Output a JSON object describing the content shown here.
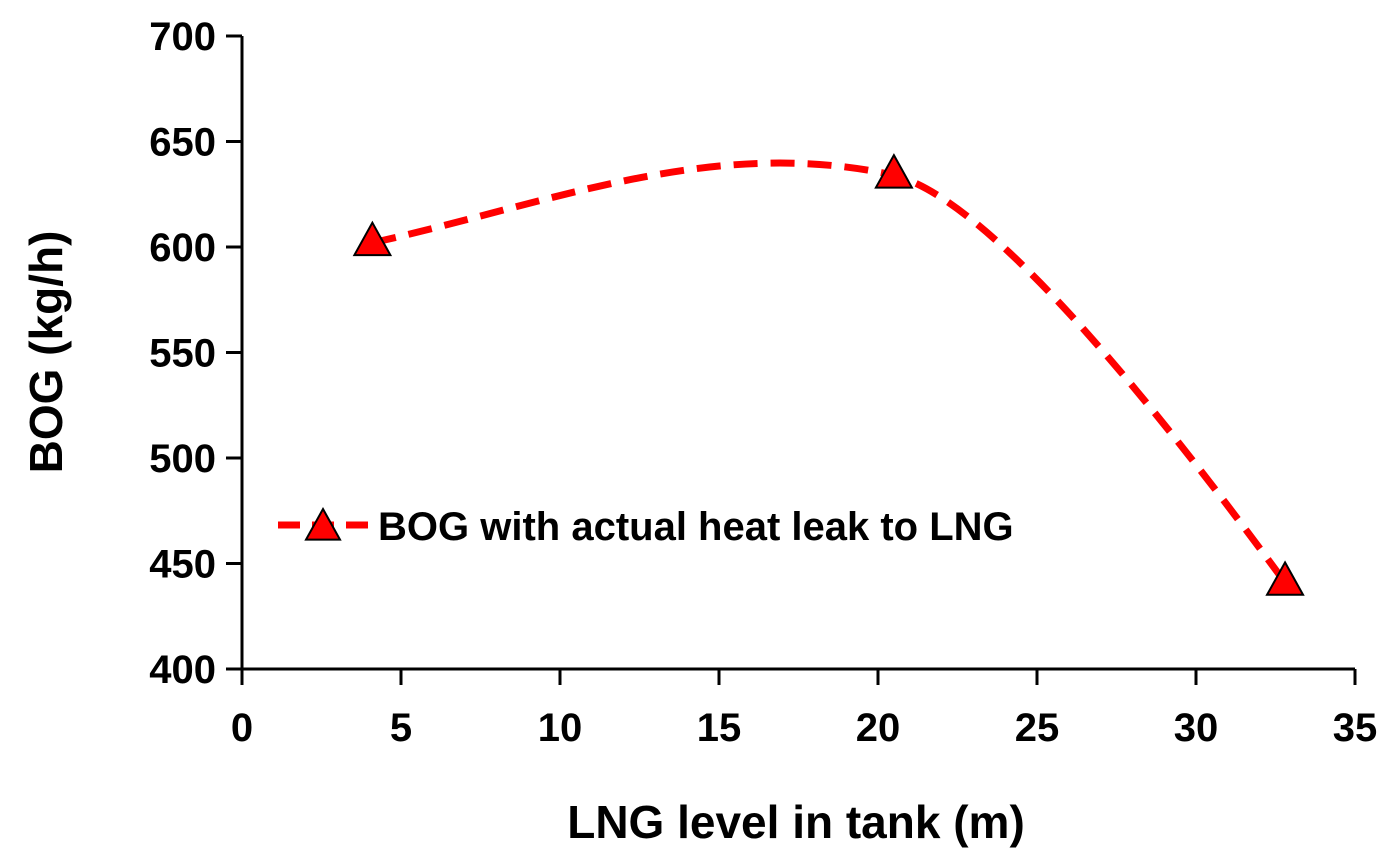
{
  "chart_data": {
    "type": "line",
    "xlabel": "LNG level in tank (m)",
    "ylabel": "BOG (kg/h)",
    "xlim": [
      0,
      35
    ],
    "ylim": [
      400,
      700
    ],
    "xticks": [
      0,
      5,
      10,
      15,
      20,
      25,
      30,
      35
    ],
    "yticks": [
      400,
      450,
      500,
      550,
      600,
      650,
      700
    ],
    "grid": false,
    "legend_position": "center-left",
    "series": [
      {
        "name": "BOG with actual heat leak to LNG",
        "color": "#ff0000",
        "line_style": "dashed",
        "smoothed": true,
        "marker": "triangle",
        "x": [
          4.1,
          20.5,
          32.8
        ],
        "y": [
          602,
          634,
          441
        ]
      }
    ]
  }
}
